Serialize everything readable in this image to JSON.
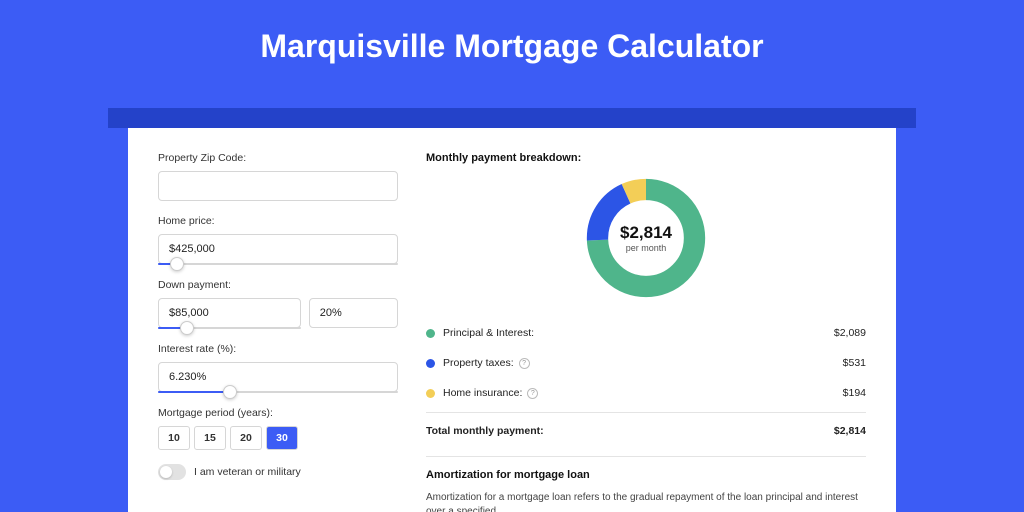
{
  "colors": {
    "page_bg": "#3C5CF5",
    "shadow_bar": "#2442C9",
    "accent": "#3C5CF5",
    "principal": "#4FB58B",
    "taxes": "#2C55E6",
    "insurance": "#F3CE57"
  },
  "title": "Marquisville Mortgage Calculator",
  "form": {
    "zip": {
      "label": "Property Zip Code:",
      "value": ""
    },
    "home_price": {
      "label": "Home price:",
      "value": "$425,000",
      "slider_pct": 8
    },
    "down_payment": {
      "label": "Down payment:",
      "value": "$85,000",
      "pct_value": "20%",
      "slider_pct": 20
    },
    "interest": {
      "label": "Interest rate (%):",
      "value": "6.230%",
      "slider_pct": 30
    },
    "period": {
      "label": "Mortgage period (years):",
      "options": [
        "10",
        "15",
        "20",
        "30"
      ],
      "active": "30"
    },
    "veteran": {
      "label": "I am veteran or military",
      "value": false
    }
  },
  "breakdown": {
    "title": "Monthly payment breakdown:",
    "total": "$2,814",
    "per": "per month",
    "items": [
      {
        "label": "Principal & Interest:",
        "value": "$2,089",
        "color_key": "principal",
        "pct": 74.2,
        "info": false
      },
      {
        "label": "Property taxes:",
        "value": "$531",
        "color_key": "taxes",
        "pct": 18.9,
        "info": true
      },
      {
        "label": "Home insurance:",
        "value": "$194",
        "color_key": "insurance",
        "pct": 6.9,
        "info": true
      }
    ],
    "total_row": {
      "label": "Total monthly payment:",
      "value": "$2,814"
    }
  },
  "amortization": {
    "title": "Amortization for mortgage loan",
    "text": "Amortization for a mortgage loan refers to the gradual repayment of the loan principal and interest over a specified"
  }
}
